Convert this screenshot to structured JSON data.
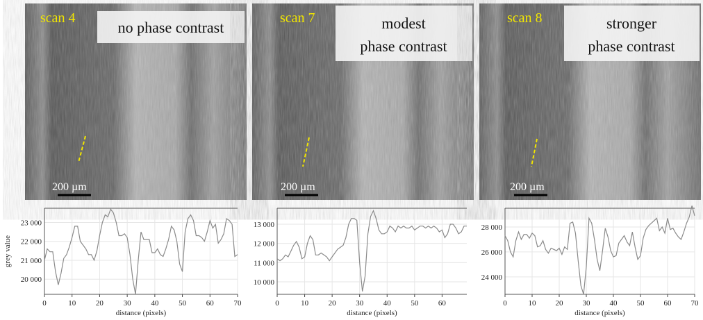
{
  "panels": [
    {
      "scan": "scan 4",
      "caption": [
        "no phase contrast"
      ],
      "scale": "200 µm"
    },
    {
      "scan": "scan 7",
      "caption": [
        "modest",
        "phase contrast"
      ],
      "scale": "200 µm"
    },
    {
      "scan": "scan 8",
      "caption": [
        "stronger",
        "phase contrast"
      ],
      "scale": "200 µm"
    }
  ],
  "chart_data": [
    {
      "type": "line",
      "xlabel": "distance (pixels)",
      "ylabel": "grey value",
      "color": "#8a8a8a",
      "grid": true,
      "xlim": [
        0,
        70
      ],
      "xticks": [
        0,
        10,
        20,
        30,
        40,
        50,
        60,
        70
      ],
      "ylim": [
        19200,
        23750
      ],
      "yticks": [
        {
          "value": 20000,
          "label": "20 000"
        },
        {
          "value": 21000,
          "label": "21 000"
        },
        {
          "value": 22000,
          "label": "22 000"
        },
        {
          "value": 23000,
          "label": "23 000"
        }
      ],
      "x": [
        0,
        1,
        2,
        3,
        4,
        5,
        6,
        7,
        8,
        9,
        10,
        11,
        12,
        13,
        14,
        15,
        16,
        17,
        18,
        19,
        20,
        21,
        22,
        23,
        24,
        25,
        26,
        27,
        28,
        29,
        30,
        31,
        32,
        33,
        34,
        35,
        36,
        37,
        38,
        39,
        40,
        41,
        42,
        43,
        44,
        45,
        46,
        47,
        48,
        49,
        50,
        51,
        52,
        53,
        54,
        55,
        56,
        57,
        58,
        59,
        60,
        61,
        62,
        63,
        64,
        65,
        66,
        67,
        68,
        69,
        70
      ],
      "values": [
        21000,
        21600,
        21450,
        21450,
        20400,
        19700,
        20300,
        21100,
        21300,
        21700,
        22200,
        22800,
        22800,
        22000,
        21800,
        21600,
        21300,
        21300,
        21000,
        21500,
        22300,
        23000,
        23400,
        23300,
        23700,
        23500,
        23000,
        22300,
        22300,
        22400,
        22200,
        21300,
        20000,
        19200,
        21000,
        22500,
        22100,
        22100,
        22100,
        21400,
        21400,
        21600,
        21300,
        21200,
        21600,
        22100,
        22800,
        22600,
        22000,
        20800,
        20400,
        22500,
        23200,
        23400,
        23100,
        22300,
        22300,
        22200,
        22000,
        22500,
        23100,
        22700,
        22900,
        21900,
        22100,
        22400,
        23200,
        23100,
        22900,
        21200,
        21300
      ]
    },
    {
      "type": "line",
      "xlabel": "distance (pixels)",
      "color": "#8a8a8a",
      "grid": true,
      "xlim": [
        0,
        69
      ],
      "xticks": [
        0,
        10,
        20,
        30,
        40,
        50,
        60
      ],
      "ylim": [
        9350,
        13830
      ],
      "yticks": [
        {
          "value": 10000,
          "label": "10 000"
        },
        {
          "value": 11000,
          "label": "11 000"
        },
        {
          "value": 12000,
          "label": "12 000"
        },
        {
          "value": 13000,
          "label": "13 000"
        }
      ],
      "x": [
        0,
        1,
        2,
        3,
        4,
        5,
        6,
        7,
        8,
        9,
        10,
        11,
        12,
        13,
        14,
        15,
        16,
        17,
        18,
        19,
        20,
        21,
        22,
        23,
        24,
        25,
        26,
        27,
        28,
        29,
        30,
        31,
        32,
        33,
        34,
        35,
        36,
        37,
        38,
        39,
        40,
        41,
        42,
        43,
        44,
        45,
        46,
        47,
        48,
        49,
        50,
        51,
        52,
        53,
        54,
        55,
        56,
        57,
        58,
        59,
        60,
        61,
        62,
        63,
        64,
        65,
        66,
        67,
        68,
        69
      ],
      "values": [
        11200,
        11100,
        11200,
        11400,
        11300,
        11600,
        11900,
        12100,
        11800,
        11200,
        11300,
        12000,
        12400,
        12200,
        11400,
        11400,
        11500,
        11400,
        11300,
        11100,
        11300,
        11500,
        11700,
        11800,
        11900,
        12300,
        13000,
        13300,
        13300,
        13200,
        11000,
        9500,
        10300,
        12500,
        13400,
        13700,
        13300,
        12700,
        12500,
        12500,
        12600,
        12900,
        12800,
        12600,
        12900,
        12800,
        12900,
        12800,
        12800,
        12900,
        12700,
        12800,
        12900,
        12900,
        12800,
        12900,
        12800,
        12900,
        12800,
        12600,
        12700,
        12300,
        12500,
        13000,
        13000,
        12800,
        12500,
        12600,
        12900,
        12900
      ]
    },
    {
      "type": "line",
      "xlabel": "distance (pixels)",
      "color": "#8a8a8a",
      "grid": true,
      "xlim": [
        0,
        70
      ],
      "xticks": [
        0,
        10,
        20,
        30,
        40,
        50,
        60,
        70
      ],
      "ylim": [
        22600,
        29500
      ],
      "yticks": [
        {
          "value": 24000,
          "label": "24 000"
        },
        {
          "value": 26000,
          "label": "26 000"
        },
        {
          "value": 28000,
          "label": "28 000"
        }
      ],
      "x": [
        0,
        1,
        2,
        3,
        4,
        5,
        6,
        7,
        8,
        9,
        10,
        11,
        12,
        13,
        14,
        15,
        16,
        17,
        18,
        19,
        20,
        21,
        22,
        23,
        24,
        25,
        26,
        27,
        28,
        29,
        30,
        31,
        32,
        33,
        34,
        35,
        36,
        37,
        38,
        39,
        40,
        41,
        42,
        43,
        44,
        45,
        46,
        47,
        48,
        49,
        50,
        51,
        52,
        53,
        54,
        55,
        56,
        57,
        58,
        59,
        60,
        61,
        62,
        63,
        64,
        65,
        66,
        67,
        68,
        69,
        70
      ],
      "values": [
        27300,
        26900,
        26000,
        25600,
        26900,
        27600,
        27000,
        27400,
        27400,
        27100,
        27500,
        27300,
        26400,
        26500,
        26900,
        26200,
        25900,
        26300,
        26200,
        26100,
        26300,
        25800,
        26400,
        26200,
        28300,
        28400,
        27500,
        25300,
        23300,
        22600,
        24800,
        28700,
        28300,
        27000,
        25400,
        24500,
        26100,
        27900,
        27200,
        26100,
        25600,
        25700,
        26700,
        27000,
        27300,
        26800,
        26500,
        27600,
        26400,
        25400,
        25700,
        27100,
        27800,
        28100,
        28300,
        28500,
        28700,
        27700,
        28000,
        27500,
        28700,
        27800,
        27900,
        27500,
        27200,
        27000,
        27600,
        28300,
        28800,
        29700,
        28900
      ]
    }
  ]
}
